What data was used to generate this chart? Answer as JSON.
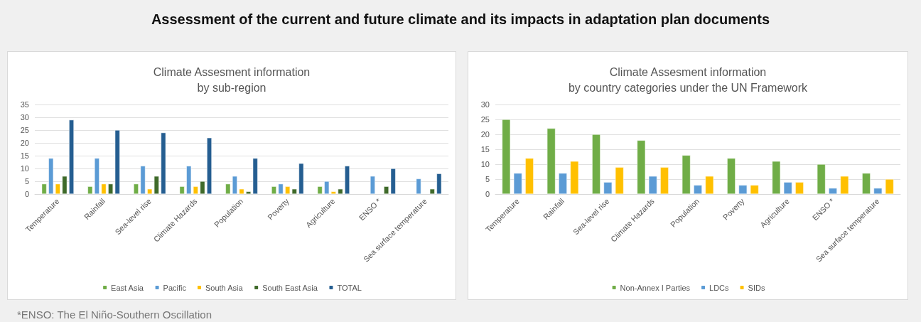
{
  "chart_data": [
    {
      "type": "bar",
      "title": "Assessment of the current and future climate and its impacts in adaptation plan documents",
      "subtitle": "Climate Assesment information\nby sub-region",
      "annotations": [
        "*ENSO: The El Niño-Southern Oscillation"
      ],
      "categories": [
        "Temperature",
        "Rainfall",
        "Sea-level rise",
        "Climate Hazards",
        "Population",
        "Poverty",
        "Agriculture",
        "ENSO *",
        "Sea surface temperature"
      ],
      "series": [
        {
          "name": "East Asia",
          "color": "#70ad47",
          "values": [
            4,
            3,
            4,
            3,
            4,
            3,
            3,
            null,
            null
          ]
        },
        {
          "name": "Pacific",
          "color": "#5b9bd5",
          "values": [
            14,
            14,
            11,
            11,
            7,
            4,
            5,
            7,
            6
          ]
        },
        {
          "name": "South Asia",
          "color": "#ffc000",
          "values": [
            4,
            4,
            2,
            3,
            2,
            3,
            1,
            null,
            null
          ]
        },
        {
          "name": "South East Asia",
          "color": "#3f6a2a",
          "values": [
            7,
            4,
            7,
            5,
            1,
            2,
            2,
            3,
            2
          ]
        },
        {
          "name": "TOTAL",
          "color": "#255e91",
          "values": [
            29,
            25,
            24,
            22,
            14,
            12,
            11,
            10,
            8
          ]
        }
      ],
      "ylim": [
        0,
        35
      ],
      "yticks": [
        0,
        5,
        10,
        15,
        20,
        25,
        30,
        35
      ],
      "grid": "y",
      "legend": "bottom"
    },
    {
      "type": "bar",
      "title": "Climate Assesment information\nby country categories under the UN Framework",
      "categories": [
        "Temperature",
        "Rainfall",
        "Sea-level rise",
        "Climate Hazards",
        "Population",
        "Poverty",
        "Agriculture",
        "ENSO *",
        "Sea surface temperature"
      ],
      "series": [
        {
          "name": "Non-Annex I Parties",
          "color": "#70ad47",
          "values": [
            25,
            22,
            20,
            18,
            13,
            12,
            11,
            10,
            7
          ]
        },
        {
          "name": "LDCs",
          "color": "#5b9bd5",
          "values": [
            7,
            7,
            4,
            6,
            3,
            3,
            4,
            2,
            2
          ]
        },
        {
          "name": "SIDs",
          "color": "#ffc000",
          "values": [
            12,
            11,
            9,
            9,
            6,
            3,
            4,
            6,
            5
          ]
        }
      ],
      "ylim": [
        0,
        30
      ],
      "yticks": [
        0,
        5,
        10,
        15,
        20,
        25,
        30
      ],
      "grid": "y",
      "legend": "bottom"
    }
  ]
}
